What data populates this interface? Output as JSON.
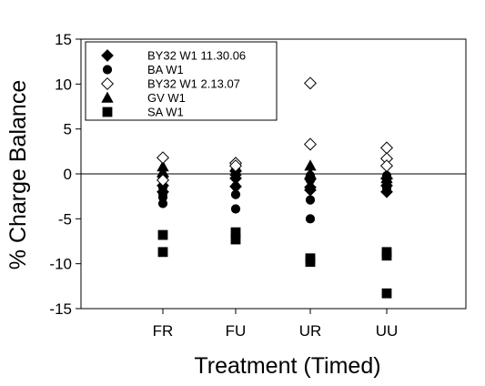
{
  "chart_data": {
    "type": "scatter",
    "xlabel": "Treatment (Timed)",
    "ylabel": "% Charge Balance",
    "categories": [
      "FR",
      "FU",
      "UR",
      "UU"
    ],
    "ylim": [
      -15,
      15
    ],
    "yticks": [
      15,
      10,
      5,
      0,
      -5,
      -10,
      -15
    ],
    "grid": false,
    "reference_line_y": 0,
    "legend_position": "top-left",
    "series": [
      {
        "name": "BY32 W1 11.30.06",
        "marker": "diamond-filled",
        "points": [
          {
            "x": "FR",
            "y": -0.3
          },
          {
            "x": "FR",
            "y": -1.3
          },
          {
            "x": "FR",
            "y": -2.0
          },
          {
            "x": "FU",
            "y": 0.3
          },
          {
            "x": "FU",
            "y": -0.5
          },
          {
            "x": "FU",
            "y": -1.4
          },
          {
            "x": "UR",
            "y": -0.6
          },
          {
            "x": "UR",
            "y": -1.5
          },
          {
            "x": "UR",
            "y": -1.8
          },
          {
            "x": "UU",
            "y": -0.5
          },
          {
            "x": "UU",
            "y": -1.3
          },
          {
            "x": "UU",
            "y": -2.0
          }
        ]
      },
      {
        "name": "BA W1",
        "marker": "circle-filled",
        "points": [
          {
            "x": "FR",
            "y": -1.5
          },
          {
            "x": "FR",
            "y": -2.2
          },
          {
            "x": "FR",
            "y": -2.6
          },
          {
            "x": "FR",
            "y": -3.3
          },
          {
            "x": "FU",
            "y": -0.1
          },
          {
            "x": "FU",
            "y": -1.4
          },
          {
            "x": "FU",
            "y": -2.3
          },
          {
            "x": "FU",
            "y": -3.9
          },
          {
            "x": "UR",
            "y": -0.2
          },
          {
            "x": "UR",
            "y": -0.7
          },
          {
            "x": "UR",
            "y": -1.6
          },
          {
            "x": "UR",
            "y": -2.9
          },
          {
            "x": "UR",
            "y": -5.0
          },
          {
            "x": "UU",
            "y": -0.2
          },
          {
            "x": "UU",
            "y": -0.9
          },
          {
            "x": "UU",
            "y": -1.6
          }
        ]
      },
      {
        "name": "BY32 W1 2.13.07",
        "marker": "diamond-open",
        "points": [
          {
            "x": "FR",
            "y": 1.8
          },
          {
            "x": "FR",
            "y": -0.7
          },
          {
            "x": "FU",
            "y": 1.2
          },
          {
            "x": "FU",
            "y": 0.9
          },
          {
            "x": "UR",
            "y": 10.1
          },
          {
            "x": "UR",
            "y": 3.3
          },
          {
            "x": "UU",
            "y": 2.9
          },
          {
            "x": "UU",
            "y": 1.7
          },
          {
            "x": "UU",
            "y": 0.9
          }
        ]
      },
      {
        "name": "GV W1",
        "marker": "triangle-filled",
        "points": [
          {
            "x": "FR",
            "y": 0.8
          },
          {
            "x": "FR",
            "y": 0.2
          },
          {
            "x": "FU",
            "y": 0.8
          },
          {
            "x": "FU",
            "y": 0.3
          },
          {
            "x": "UR",
            "y": 0.9
          },
          {
            "x": "UR",
            "y": 0.0
          },
          {
            "x": "UU",
            "y": -0.1
          },
          {
            "x": "UU",
            "y": -0.5
          }
        ]
      },
      {
        "name": "SA W1",
        "marker": "square-filled",
        "points": [
          {
            "x": "FR",
            "y": -6.8
          },
          {
            "x": "FR",
            "y": -8.7
          },
          {
            "x": "FU",
            "y": -6.5
          },
          {
            "x": "FU",
            "y": -7.3
          },
          {
            "x": "UR",
            "y": -9.4
          },
          {
            "x": "UR",
            "y": -9.8
          },
          {
            "x": "UU",
            "y": -8.7
          },
          {
            "x": "UU",
            "y": -9.1
          },
          {
            "x": "UU",
            "y": -13.3
          }
        ]
      }
    ]
  }
}
